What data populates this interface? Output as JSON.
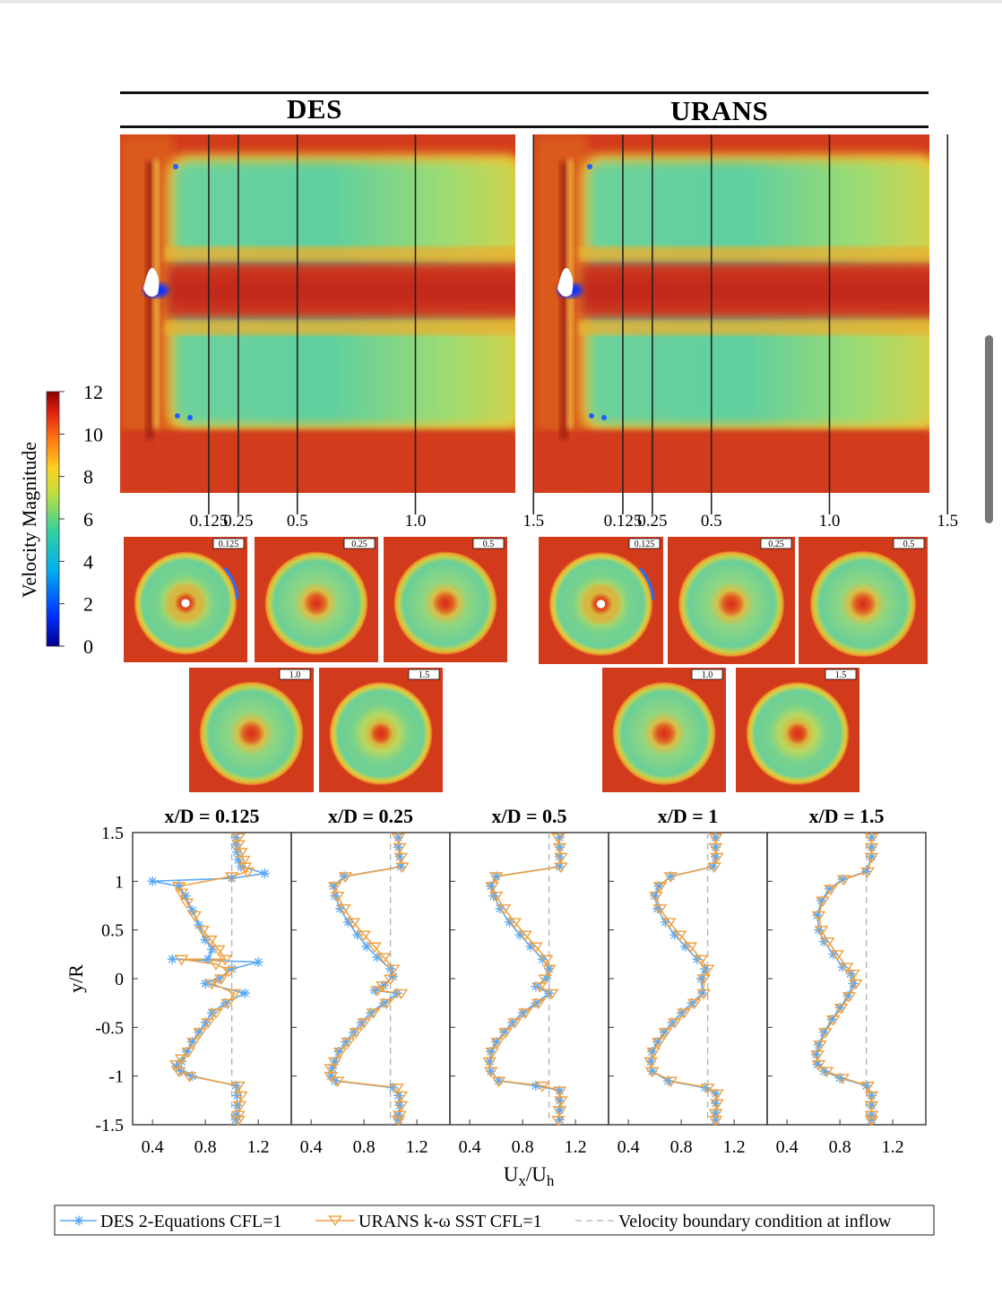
{
  "header": {
    "left": "DES",
    "right": "URANS"
  },
  "colorbar": {
    "label": "Velocity Magnitude",
    "ticks": [
      "0",
      "2",
      "4",
      "6",
      "8",
      "10",
      "12"
    ]
  },
  "planes": {
    "des": [
      "0.125",
      "0.25",
      "0.5",
      "1.0",
      "1.5"
    ],
    "urans": [
      "0.125",
      "0.25",
      "0.5",
      "1.0",
      "1.5"
    ]
  },
  "section_tags": [
    "0.125",
    "0.25",
    "0.5",
    "1.0",
    "1.5"
  ],
  "chart_data": [
    {
      "type": "line",
      "title": "x/D = 0.125",
      "xlabel": "Ux/Uh",
      "ylabel": "y/R",
      "xlim": [
        0.25,
        1.45
      ],
      "ylim": [
        -1.5,
        1.5
      ],
      "xticks": [
        "0.4",
        "0.8",
        "1.2"
      ],
      "yticks": [
        "1.5",
        "1",
        "0.5",
        "0",
        "-0.5",
        "-1",
        "-1.5"
      ],
      "series": [
        {
          "name": "DES 2-Equations CFL=1",
          "x": [
            1.03,
            1.03,
            1.04,
            1.05,
            1.07,
            1.25,
            1.0,
            0.4,
            0.6,
            0.65,
            0.7,
            0.75,
            0.8,
            0.85,
            0.82,
            0.55,
            1.2,
            1.0,
            0.9,
            0.8,
            1.1,
            0.95,
            0.85,
            0.8,
            0.75,
            0.7,
            0.66,
            0.62,
            0.58,
            0.62,
            0.7,
            1.03,
            1.04,
            1.04,
            1.03,
            1.03
          ],
          "y": [
            1.45,
            1.38,
            1.3,
            1.22,
            1.15,
            1.08,
            1.03,
            1.0,
            0.95,
            0.85,
            0.7,
            0.55,
            0.4,
            0.3,
            0.2,
            0.2,
            0.17,
            0.1,
            0.0,
            -0.05,
            -0.15,
            -0.25,
            -0.35,
            -0.45,
            -0.55,
            -0.65,
            -0.75,
            -0.85,
            -0.9,
            -0.95,
            -1.0,
            -1.1,
            -1.2,
            -1.3,
            -1.4,
            -1.45
          ]
        },
        {
          "name": "URANS k-ω SST CFL=1",
          "x": [
            1.05,
            1.05,
            1.07,
            1.09,
            1.1,
            1.12,
            1.0,
            0.6,
            0.62,
            0.66,
            0.72,
            0.78,
            0.84,
            0.9,
            0.95,
            0.62,
            0.88,
            0.98,
            0.92,
            0.85,
            1.02,
            0.97,
            0.88,
            0.82,
            0.76,
            0.71,
            0.67,
            0.62,
            0.58,
            0.6,
            0.68,
            1.05,
            1.07,
            1.06,
            1.05,
            1.05
          ],
          "y": [
            1.45,
            1.38,
            1.3,
            1.22,
            1.15,
            1.1,
            1.05,
            0.95,
            0.88,
            0.78,
            0.65,
            0.5,
            0.4,
            0.3,
            0.2,
            0.2,
            0.15,
            0.08,
            0.0,
            -0.05,
            -0.15,
            -0.25,
            -0.35,
            -0.45,
            -0.55,
            -0.65,
            -0.75,
            -0.82,
            -0.88,
            -0.95,
            -1.0,
            -1.1,
            -1.2,
            -1.3,
            -1.4,
            -1.45
          ]
        }
      ]
    },
    {
      "type": "line",
      "title": "x/D = 0.25",
      "xlabel": "Ux/Uh",
      "ylabel": "y/R",
      "xlim": [
        0.25,
        1.45
      ],
      "ylim": [
        -1.5,
        1.5
      ],
      "xticks": [
        "0.4",
        "0.8",
        "1.2"
      ],
      "series": [
        {
          "name": "DES 2-Equations CFL=1",
          "x": [
            1.06,
            1.06,
            1.07,
            1.08,
            0.65,
            0.57,
            0.58,
            0.62,
            0.68,
            0.75,
            0.82,
            0.9,
            1.0,
            1.02,
            0.95,
            0.88,
            1.05,
            0.95,
            0.85,
            0.78,
            0.72,
            0.66,
            0.61,
            0.58,
            0.56,
            0.55,
            0.58,
            1.02,
            1.06,
            1.07,
            1.06,
            1.06
          ],
          "y": [
            1.45,
            1.35,
            1.25,
            1.15,
            1.05,
            0.95,
            0.85,
            0.72,
            0.58,
            0.45,
            0.33,
            0.22,
            0.1,
            0.02,
            -0.07,
            -0.12,
            -0.15,
            -0.25,
            -0.35,
            -0.45,
            -0.55,
            -0.65,
            -0.75,
            -0.85,
            -0.92,
            -1.0,
            -1.05,
            -1.12,
            -1.2,
            -1.3,
            -1.4,
            -1.45
          ]
        },
        {
          "name": "URANS k-ω SST CFL=1",
          "x": [
            1.06,
            1.07,
            1.08,
            1.09,
            0.66,
            0.58,
            0.6,
            0.65,
            0.72,
            0.8,
            0.88,
            0.95,
            1.02,
            1.0,
            0.94,
            0.9,
            1.08,
            0.97,
            0.87,
            0.8,
            0.74,
            0.68,
            0.62,
            0.58,
            0.55,
            0.55,
            0.6,
            1.05,
            1.08,
            1.08,
            1.07,
            1.06
          ],
          "y": [
            1.45,
            1.35,
            1.25,
            1.15,
            1.05,
            0.95,
            0.85,
            0.72,
            0.58,
            0.45,
            0.33,
            0.22,
            0.1,
            0.0,
            -0.07,
            -0.12,
            -0.15,
            -0.25,
            -0.35,
            -0.45,
            -0.55,
            -0.65,
            -0.75,
            -0.85,
            -0.92,
            -1.0,
            -1.05,
            -1.12,
            -1.2,
            -1.3,
            -1.4,
            -1.45
          ]
        }
      ]
    },
    {
      "type": "line",
      "title": "x/D = 0.5",
      "xlabel": "Ux/Uh",
      "ylabel": "y/R",
      "xlim": [
        0.25,
        1.45
      ],
      "ylim": [
        -1.5,
        1.5
      ],
      "xticks": [
        "0.4",
        "0.8",
        "1.2"
      ],
      "series": [
        {
          "name": "DES 2-Equations CFL=1",
          "x": [
            1.08,
            1.08,
            1.08,
            1.08,
            0.6,
            0.56,
            0.58,
            0.63,
            0.7,
            0.78,
            0.86,
            0.95,
            1.0,
            0.98,
            0.9,
            1.0,
            0.9,
            0.8,
            0.72,
            0.66,
            0.6,
            0.56,
            0.55,
            0.56,
            0.62,
            0.9,
            1.08,
            1.08,
            1.08,
            1.08
          ],
          "y": [
            1.45,
            1.35,
            1.25,
            1.15,
            1.05,
            0.95,
            0.85,
            0.72,
            0.58,
            0.45,
            0.33,
            0.2,
            0.1,
            0.0,
            -0.08,
            -0.15,
            -0.25,
            -0.35,
            -0.45,
            -0.55,
            -0.65,
            -0.75,
            -0.85,
            -0.95,
            -1.05,
            -1.1,
            -1.15,
            -1.25,
            -1.35,
            -1.45
          ]
        },
        {
          "name": "URANS k-ω SST CFL=1",
          "x": [
            1.07,
            1.08,
            1.09,
            1.09,
            0.6,
            0.57,
            0.6,
            0.66,
            0.74,
            0.82,
            0.9,
            0.98,
            1.0,
            0.97,
            0.93,
            1.02,
            0.92,
            0.82,
            0.74,
            0.67,
            0.61,
            0.57,
            0.55,
            0.56,
            0.62,
            0.95,
            1.08,
            1.09,
            1.08,
            1.07
          ],
          "y": [
            1.45,
            1.35,
            1.25,
            1.15,
            1.05,
            0.95,
            0.85,
            0.72,
            0.58,
            0.45,
            0.33,
            0.2,
            0.1,
            0.0,
            -0.08,
            -0.15,
            -0.25,
            -0.35,
            -0.45,
            -0.55,
            -0.65,
            -0.75,
            -0.85,
            -0.95,
            -1.05,
            -1.1,
            -1.15,
            -1.25,
            -1.35,
            -1.45
          ]
        }
      ]
    },
    {
      "type": "line",
      "title": "x/D = 1",
      "xlabel": "Ux/Uh",
      "ylabel": "y/R",
      "xlim": [
        0.25,
        1.45
      ],
      "ylim": [
        -1.5,
        1.5
      ],
      "xticks": [
        "0.4",
        "0.8",
        "1.2"
      ],
      "series": [
        {
          "name": "DES 2-Equations CFL=1",
          "x": [
            1.06,
            1.06,
            1.06,
            1.04,
            0.72,
            0.63,
            0.6,
            0.62,
            0.68,
            0.75,
            0.83,
            0.92,
            0.98,
            0.95,
            0.96,
            0.88,
            0.8,
            0.73,
            0.67,
            0.62,
            0.58,
            0.57,
            0.58,
            0.7,
            0.98,
            1.06,
            1.06,
            1.06,
            1.06
          ],
          "y": [
            1.45,
            1.35,
            1.25,
            1.15,
            1.05,
            0.95,
            0.85,
            0.72,
            0.58,
            0.45,
            0.33,
            0.2,
            0.1,
            0.0,
            -0.15,
            -0.25,
            -0.35,
            -0.45,
            -0.55,
            -0.65,
            -0.75,
            -0.85,
            -0.95,
            -1.05,
            -1.12,
            -1.18,
            -1.28,
            -1.38,
            -1.45
          ]
        },
        {
          "name": "URANS k-ω SST CFL=1",
          "x": [
            1.06,
            1.06,
            1.07,
            1.05,
            0.72,
            0.64,
            0.61,
            0.64,
            0.71,
            0.79,
            0.87,
            0.95,
            1.0,
            0.97,
            0.97,
            0.9,
            0.82,
            0.75,
            0.68,
            0.63,
            0.59,
            0.57,
            0.58,
            0.72,
            1.0,
            1.07,
            1.07,
            1.06,
            1.06
          ],
          "y": [
            1.45,
            1.35,
            1.25,
            1.15,
            1.05,
            0.95,
            0.85,
            0.72,
            0.58,
            0.45,
            0.33,
            0.2,
            0.1,
            0.0,
            -0.15,
            -0.25,
            -0.35,
            -0.45,
            -0.55,
            -0.65,
            -0.75,
            -0.85,
            -0.95,
            -1.05,
            -1.12,
            -1.18,
            -1.28,
            -1.38,
            -1.45
          ]
        }
      ]
    },
    {
      "type": "line",
      "title": "x/D = 1.5",
      "xlabel": "Ux/Uh",
      "ylabel": "y/R",
      "xlim": [
        0.25,
        1.45
      ],
      "ylim": [
        -1.5,
        1.5
      ],
      "xticks": [
        "0.4",
        "0.8",
        "1.2"
      ],
      "series": [
        {
          "name": "DES 2-Equations CFL=1",
          "x": [
            1.04,
            1.04,
            1.04,
            1.0,
            0.82,
            0.72,
            0.66,
            0.63,
            0.64,
            0.68,
            0.75,
            0.82,
            0.88,
            0.9,
            0.86,
            0.8,
            0.74,
            0.68,
            0.64,
            0.62,
            0.63,
            0.68,
            0.8,
            1.0,
            1.04,
            1.04,
            1.04,
            1.04
          ],
          "y": [
            1.45,
            1.35,
            1.25,
            1.1,
            1.02,
            0.92,
            0.8,
            0.65,
            0.5,
            0.38,
            0.25,
            0.12,
            0.05,
            -0.05,
            -0.18,
            -0.3,
            -0.42,
            -0.55,
            -0.68,
            -0.78,
            -0.88,
            -0.95,
            -1.02,
            -1.1,
            -1.2,
            -1.3,
            -1.4,
            -1.45
          ]
        },
        {
          "name": "URANS k-ω SST CFL=1",
          "x": [
            1.04,
            1.04,
            1.04,
            1.01,
            0.83,
            0.73,
            0.67,
            0.64,
            0.66,
            0.71,
            0.78,
            0.85,
            0.9,
            0.92,
            0.87,
            0.81,
            0.75,
            0.69,
            0.65,
            0.63,
            0.64,
            0.7,
            0.82,
            1.01,
            1.04,
            1.04,
            1.04,
            1.04
          ],
          "y": [
            1.45,
            1.35,
            1.25,
            1.1,
            1.02,
            0.92,
            0.8,
            0.65,
            0.5,
            0.38,
            0.25,
            0.12,
            0.05,
            -0.05,
            -0.18,
            -0.3,
            -0.42,
            -0.55,
            -0.68,
            -0.78,
            -0.88,
            -0.95,
            -1.02,
            -1.1,
            -1.2,
            -1.3,
            -1.4,
            -1.45
          ]
        }
      ]
    }
  ],
  "axes": {
    "ylabel": "y/R",
    "xlabel_main": "U",
    "xlabel_sub1": "x",
    "xlabel_sep": "/U",
    "xlabel_sub2": "h"
  },
  "inflow_value": 1.0,
  "legend": {
    "des": "DES 2-Equations CFL=1",
    "urans": "URANS k-ω SST CFL=1",
    "inflow": "Velocity boundary condition at inflow"
  },
  "colors": {
    "des": "#5aa9f5",
    "urans": "#f0a040",
    "inflow": "#b0b0b0"
  }
}
